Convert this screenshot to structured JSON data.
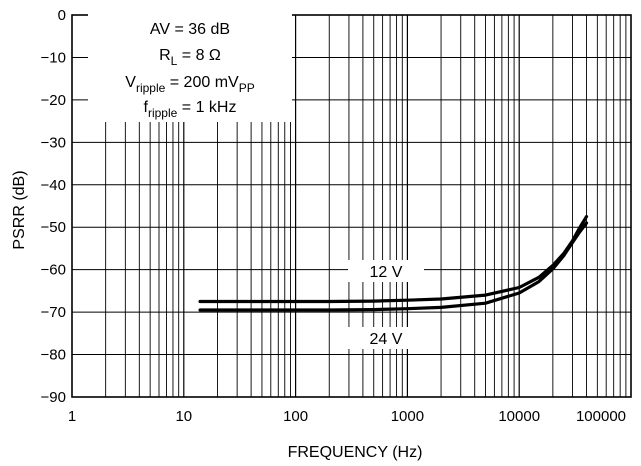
{
  "chart_data": {
    "type": "line",
    "xlabel": "FREQUENCY (Hz)",
    "ylabel": "PSRR (dB)",
    "x_scale": "log",
    "xlim": [
      1,
      100000
    ],
    "ylim": [
      -90,
      0
    ],
    "grid": true,
    "x_ticks": [
      "1",
      "10",
      "100",
      "1000",
      "10000",
      "100000"
    ],
    "y_ticks": [
      "0",
      "−10",
      "−20",
      "−30",
      "−40",
      "−50",
      "−60",
      "−70",
      "−80",
      "−90"
    ],
    "annotation": {
      "line1": "AV = 36 dB",
      "line2_main": "R",
      "line2_sub": "L",
      "line2_rest": " = 8 Ω",
      "line3_main": "V",
      "line3_sub": "ripple",
      "line3_rest": " = 200 mV",
      "line3_sub2": "PP",
      "line4_main": "f",
      "line4_sub": "ripple",
      "line4_rest": " = 1 kHz"
    },
    "series": [
      {
        "name": "12 V",
        "x": [
          14,
          20,
          50,
          100,
          200,
          500,
          1000,
          2000,
          5000,
          10000,
          15000,
          20000,
          25000,
          30000,
          35000,
          40000
        ],
        "y": [
          -67.5,
          -67.5,
          -67.5,
          -67.5,
          -67.5,
          -67.4,
          -67.2,
          -66.9,
          -66.0,
          -64.2,
          -61.8,
          -59.0,
          -56.2,
          -53.2,
          -50.0,
          -47.5
        ]
      },
      {
        "name": "24 V",
        "x": [
          14,
          20,
          50,
          100,
          200,
          500,
          1000,
          2000,
          5000,
          10000,
          15000,
          20000,
          25000,
          30000,
          35000,
          40000
        ],
        "y": [
          -69.5,
          -69.5,
          -69.5,
          -69.5,
          -69.5,
          -69.4,
          -69.2,
          -68.9,
          -67.9,
          -65.5,
          -62.8,
          -59.8,
          -56.7,
          -53.6,
          -51.0,
          -49.0
        ]
      }
    ]
  }
}
